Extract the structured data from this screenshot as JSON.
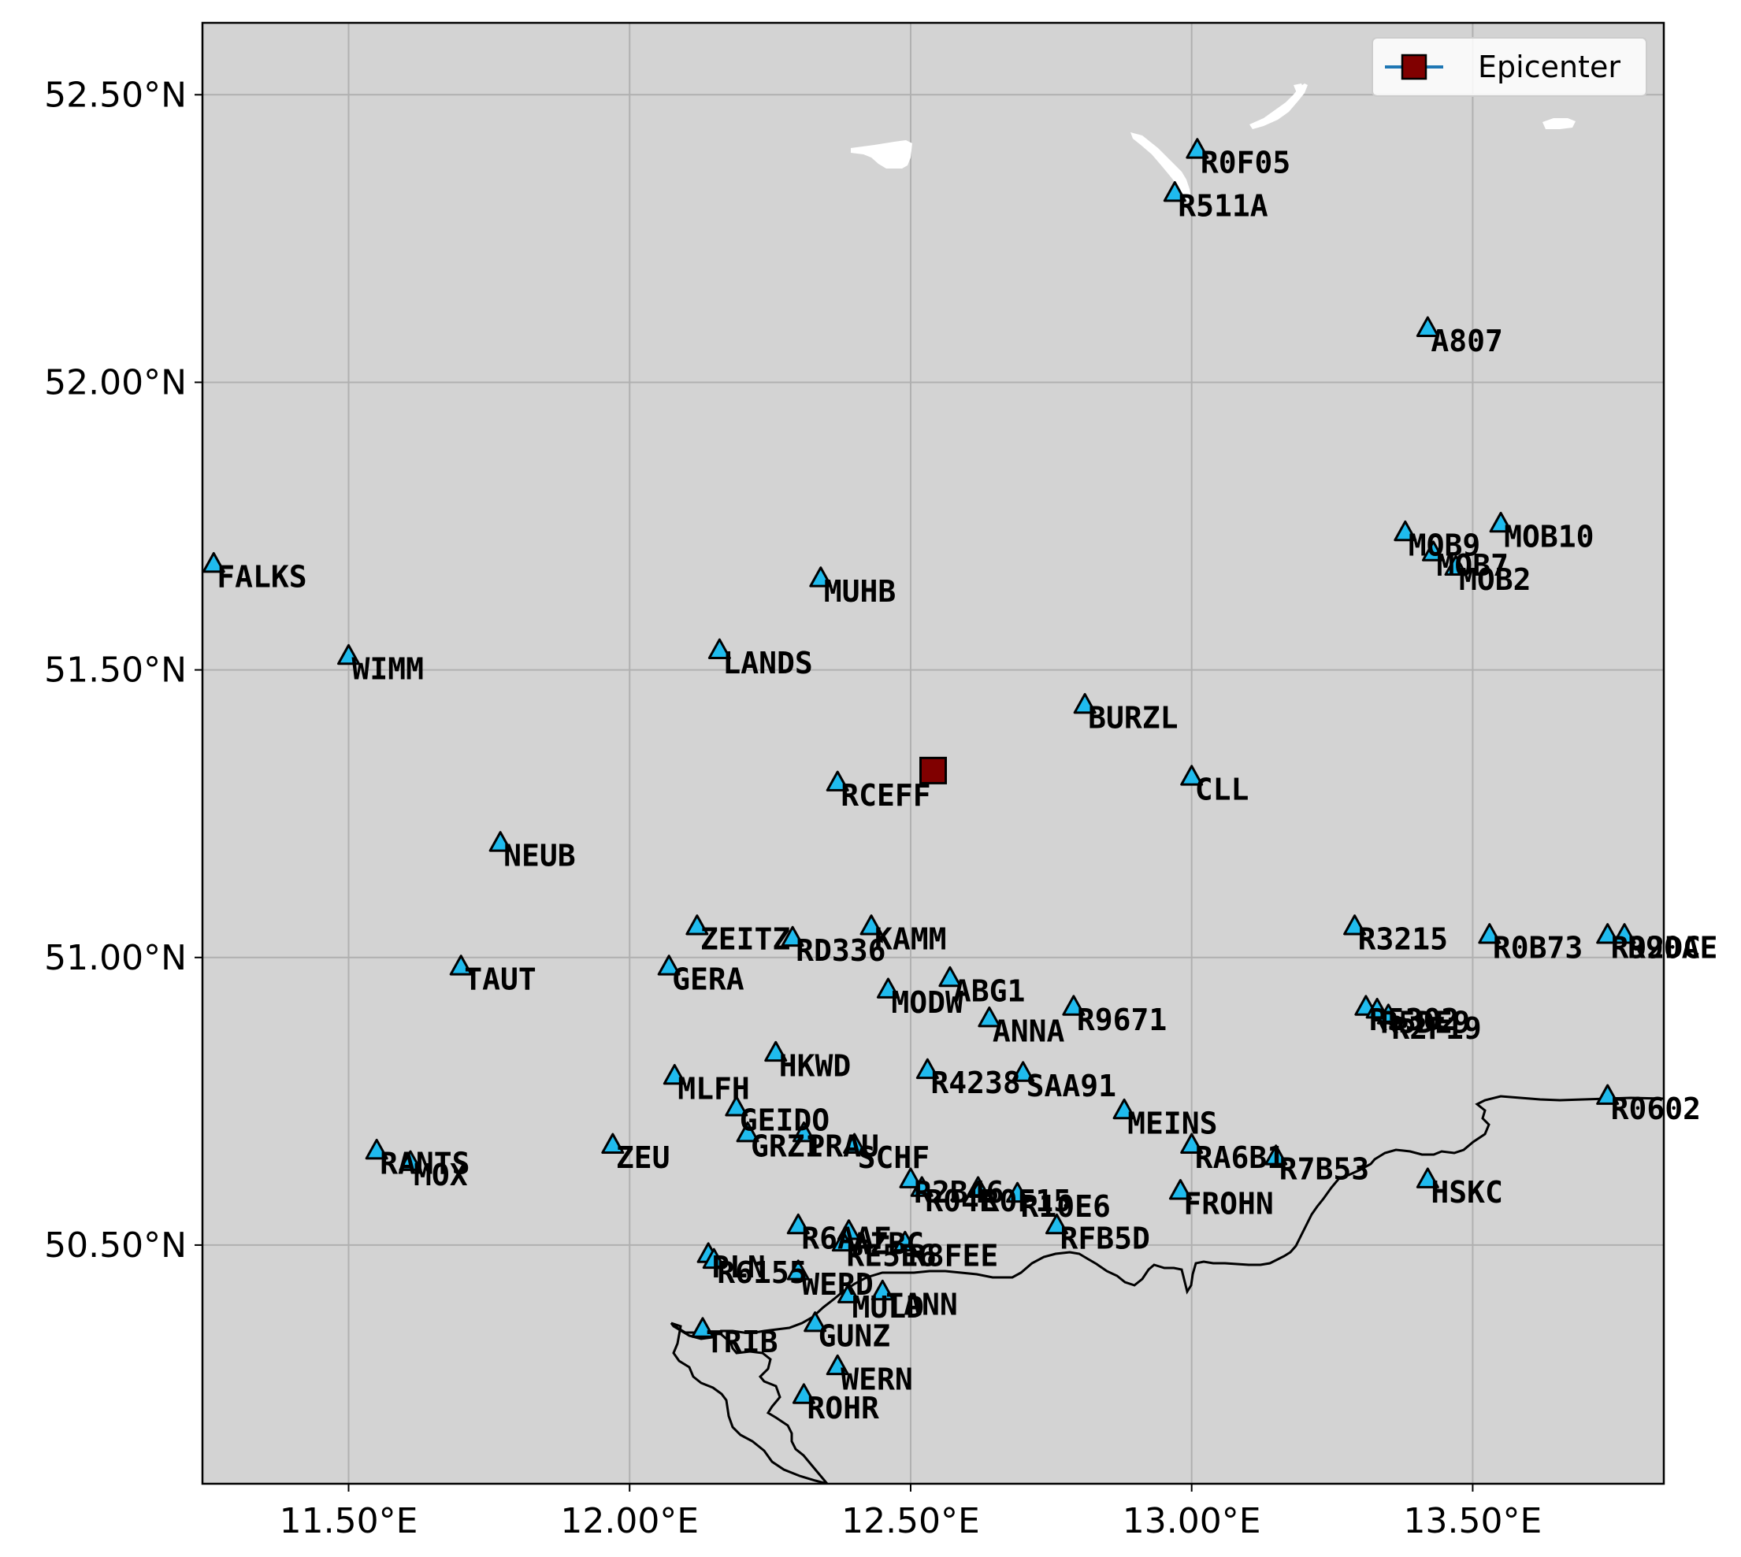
{
  "chart_data": {
    "type": "map",
    "xlim": [
      11.24,
      13.84
    ],
    "ylim": [
      50.085,
      52.625
    ],
    "grid": true,
    "x_ticks": [
      11.5,
      12.0,
      12.5,
      13.0,
      13.5
    ],
    "y_ticks": [
      50.5,
      51.0,
      51.5,
      52.0,
      52.5
    ],
    "x_tick_labels": [
      "11.50°E",
      "12.00°E",
      "12.50°E",
      "13.00°E",
      "13.50°E"
    ],
    "y_tick_labels": [
      "50.50°N",
      "51.00°N",
      "51.50°N",
      "52.00°N",
      "52.50°N"
    ],
    "legend": {
      "placement": "top-right",
      "entries": [
        {
          "label": "Epicenter",
          "color": "#800000",
          "line_color": "#1f77b4"
        }
      ]
    },
    "colors": {
      "background": "#d3d3d3",
      "station_fill": "#1fbbee",
      "epicenter_fill": "#800000",
      "water": "#ffffff",
      "border": "#000000",
      "grid": "#b0b0b0"
    },
    "epicenter": {
      "lon": 12.54,
      "lat": 51.325
    },
    "stations": [
      {
        "name": "R0F05",
        "lon": 13.01,
        "lat": 52.405
      },
      {
        "name": "R511A",
        "lon": 12.97,
        "lat": 52.33
      },
      {
        "name": "A807",
        "lon": 13.42,
        "lat": 52.095
      },
      {
        "name": "MOB9",
        "lon": 13.38,
        "lat": 51.74
      },
      {
        "name": "MOB7",
        "lon": 13.43,
        "lat": 51.705
      },
      {
        "name": "MOB10",
        "lon": 13.55,
        "lat": 51.755
      },
      {
        "name": "MOB2",
        "lon": 13.47,
        "lat": 51.68
      },
      {
        "name": "FALKS",
        "lon": 11.26,
        "lat": 51.685
      },
      {
        "name": "MUHB",
        "lon": 12.34,
        "lat": 51.66
      },
      {
        "name": "WIMM",
        "lon": 11.5,
        "lat": 51.525
      },
      {
        "name": "LANDS",
        "lon": 12.16,
        "lat": 51.535
      },
      {
        "name": "BURZL",
        "lon": 12.81,
        "lat": 51.44
      },
      {
        "name": "RCEFF",
        "lon": 12.37,
        "lat": 51.305
      },
      {
        "name": "CLL",
        "lon": 13.0,
        "lat": 51.315
      },
      {
        "name": "NEUB",
        "lon": 11.77,
        "lat": 51.2
      },
      {
        "name": "ZEITZ",
        "lon": 12.12,
        "lat": 51.055
      },
      {
        "name": "RD336",
        "lon": 12.29,
        "lat": 51.035
      },
      {
        "name": "KAMM",
        "lon": 12.43,
        "lat": 51.055
      },
      {
        "name": "R3215",
        "lon": 13.29,
        "lat": 51.055
      },
      {
        "name": "R0B73",
        "lon": 13.53,
        "lat": 51.04
      },
      {
        "name": "R92DC",
        "lon": 13.74,
        "lat": 51.04
      },
      {
        "name": "R90AE",
        "lon": 13.77,
        "lat": 51.04
      },
      {
        "name": "TAUT",
        "lon": 11.7,
        "lat": 50.985
      },
      {
        "name": "GERA",
        "lon": 12.07,
        "lat": 50.985
      },
      {
        "name": "ABG1",
        "lon": 12.57,
        "lat": 50.965
      },
      {
        "name": "MODW",
        "lon": 12.46,
        "lat": 50.945
      },
      {
        "name": "R9671",
        "lon": 12.79,
        "lat": 50.915
      },
      {
        "name": "ANNA",
        "lon": 12.64,
        "lat": 50.895
      },
      {
        "name": "R5302",
        "lon": 13.31,
        "lat": 50.915
      },
      {
        "name": "R5DE9",
        "lon": 13.33,
        "lat": 50.91
      },
      {
        "name": "R2F19",
        "lon": 13.35,
        "lat": 50.9
      },
      {
        "name": "HKWD",
        "lon": 12.26,
        "lat": 50.835
      },
      {
        "name": "MLFH",
        "lon": 12.08,
        "lat": 50.795
      },
      {
        "name": "R4238",
        "lon": 12.53,
        "lat": 50.805
      },
      {
        "name": "SAA91",
        "lon": 12.7,
        "lat": 50.8
      },
      {
        "name": "R0602",
        "lon": 13.74,
        "lat": 50.76
      },
      {
        "name": "GEIDO",
        "lon": 12.19,
        "lat": 50.74
      },
      {
        "name": "MEINS",
        "lon": 12.88,
        "lat": 50.735
      },
      {
        "name": "GRZ1",
        "lon": 12.21,
        "lat": 50.695
      },
      {
        "name": "PRAU",
        "lon": 12.31,
        "lat": 50.695
      },
      {
        "name": "SCHF",
        "lon": 12.4,
        "lat": 50.675
      },
      {
        "name": "ZEU",
        "lon": 11.97,
        "lat": 50.675
      },
      {
        "name": "RA6B1",
        "lon": 13.0,
        "lat": 50.675
      },
      {
        "name": "R7B53",
        "lon": 13.15,
        "lat": 50.655
      },
      {
        "name": "RANTS",
        "lon": 11.55,
        "lat": 50.665
      },
      {
        "name": "MOX",
        "lon": 11.61,
        "lat": 50.645
      },
      {
        "name": "HSKC",
        "lon": 13.42,
        "lat": 50.615
      },
      {
        "name": "R2B46",
        "lon": 12.5,
        "lat": 50.615
      },
      {
        "name": "R04E",
        "lon": 12.52,
        "lat": 50.6
      },
      {
        "name": "R0F15",
        "lon": 12.62,
        "lat": 50.6
      },
      {
        "name": "R10E6",
        "lon": 12.69,
        "lat": 50.59
      },
      {
        "name": "FROHN",
        "lon": 12.98,
        "lat": 50.595
      },
      {
        "name": "RFB5D",
        "lon": 12.76,
        "lat": 50.535
      },
      {
        "name": "R6AAF",
        "lon": 12.3,
        "lat": 50.535
      },
      {
        "name": "AZBC",
        "lon": 12.39,
        "lat": 50.525
      },
      {
        "name": "RE5E6",
        "lon": 12.38,
        "lat": 50.505
      },
      {
        "name": "R8FEE",
        "lon": 12.49,
        "lat": 50.505
      },
      {
        "name": "PLN",
        "lon": 12.14,
        "lat": 50.485
      },
      {
        "name": "R6155",
        "lon": 12.15,
        "lat": 50.475
      },
      {
        "name": "WERD",
        "lon": 12.3,
        "lat": 50.455
      },
      {
        "name": "MULD",
        "lon": 12.39,
        "lat": 50.415
      },
      {
        "name": "TANN",
        "lon": 12.45,
        "lat": 50.42
      },
      {
        "name": "GUNZ",
        "lon": 12.33,
        "lat": 50.365
      },
      {
        "name": "TRIB",
        "lon": 12.13,
        "lat": 50.355
      },
      {
        "name": "WERN",
        "lon": 12.37,
        "lat": 50.29
      },
      {
        "name": "ROHR",
        "lon": 12.31,
        "lat": 50.24
      }
    ]
  }
}
